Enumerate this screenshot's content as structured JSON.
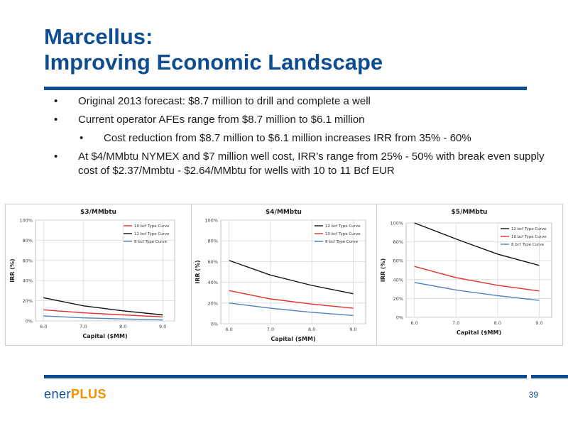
{
  "slide": {
    "title_line1": "Marcellus:",
    "title_line2": "Improving Economic Landscape",
    "bullets": [
      "Original 2013 forecast: $8.7 million to drill and complete a well",
      "Current operator AFEs range from $8.7 million to $6.1 million",
      "Cost reduction from $8.7 million to $6.1 million increases IRR from 35% - 60%",
      "At $4/MMbtu NYMEX and $7 million well cost, IRR’s range from 25% - 50% with break even supply cost of $2.37/Mmbtu - $2.64/MMbtu for wells with 10 to 11 Bcf EUR"
    ],
    "page_number": "39",
    "logo_text_a": "ener",
    "logo_text_b": "PLUS"
  },
  "colors": {
    "brand_blue": "#0f4d92",
    "series_10": "#e0312c",
    "series_12": "#111111",
    "series_8": "#4f81bd"
  },
  "chart_data": [
    {
      "type": "line",
      "title": "$3/MMbtu",
      "xlabel": "Capital ($MM)",
      "ylabel": "IRR (%)",
      "x": [
        6.0,
        7.0,
        8.0,
        9.0
      ],
      "xticks": [
        "6.0",
        "7.0",
        "8.0",
        "9.0"
      ],
      "xlim": [
        5.8,
        9.3
      ],
      "ylim": [
        0,
        100
      ],
      "yticks": [
        "0%",
        "20%",
        "40%",
        "60%",
        "80%",
        "100%"
      ],
      "grid": true,
      "legend": "top-right",
      "series": [
        {
          "name": "10 bcf Type Curve",
          "color": "#e0312c",
          "values": [
            11,
            8,
            6,
            4
          ]
        },
        {
          "name": "12 bcf Type Curve",
          "color": "#111111",
          "values": [
            23,
            15,
            10,
            6
          ]
        },
        {
          "name": "8 bcf Type Curve",
          "color": "#4f81bd",
          "values": [
            5,
            3,
            2,
            1
          ]
        }
      ]
    },
    {
      "type": "line",
      "title": "$4/MMbtu",
      "xlabel": "Capital ($MM)",
      "ylabel": "IRR (%)",
      "x": [
        6.0,
        7.0,
        8.0,
        9.0
      ],
      "xticks": [
        "6.0",
        "7.0",
        "8.0",
        "9.0"
      ],
      "xlim": [
        5.8,
        9.3
      ],
      "ylim": [
        0,
        100
      ],
      "yticks": [
        "0%",
        "20%",
        "40%",
        "60%",
        "80%",
        "100%"
      ],
      "grid": true,
      "legend": "top-right",
      "series": [
        {
          "name": "12 bcf Type Curve",
          "color": "#111111",
          "values": [
            61,
            47,
            37,
            29
          ]
        },
        {
          "name": "10 bcf Type Curve",
          "color": "#e0312c",
          "values": [
            32,
            24,
            19,
            15
          ]
        },
        {
          "name": "8 bcf Type Curve",
          "color": "#4f81bd",
          "values": [
            20,
            15,
            11,
            8
          ]
        }
      ]
    },
    {
      "type": "line",
      "title": "$5/MMbtu",
      "xlabel": "Capital ($MM)",
      "ylabel": "IRR (%)",
      "x": [
        6.0,
        7.0,
        8.0,
        9.0
      ],
      "xticks": [
        "6.0",
        "7.0",
        "8.0",
        "9.0"
      ],
      "xlim": [
        5.8,
        9.3
      ],
      "ylim": [
        0,
        100
      ],
      "yticks": [
        "0%",
        "20%",
        "40%",
        "60%",
        "80%",
        "100%"
      ],
      "grid": true,
      "legend": "top-right",
      "series": [
        {
          "name": "12 bcf Type Curve",
          "color": "#111111",
          "values": [
            100,
            83,
            67,
            55
          ]
        },
        {
          "name": "10 bcf Type Curve",
          "color": "#e0312c",
          "values": [
            54,
            42,
            34,
            28
          ]
        },
        {
          "name": "8 bcf Type Curve",
          "color": "#4f81bd",
          "values": [
            37,
            29,
            23,
            18
          ]
        }
      ]
    }
  ]
}
